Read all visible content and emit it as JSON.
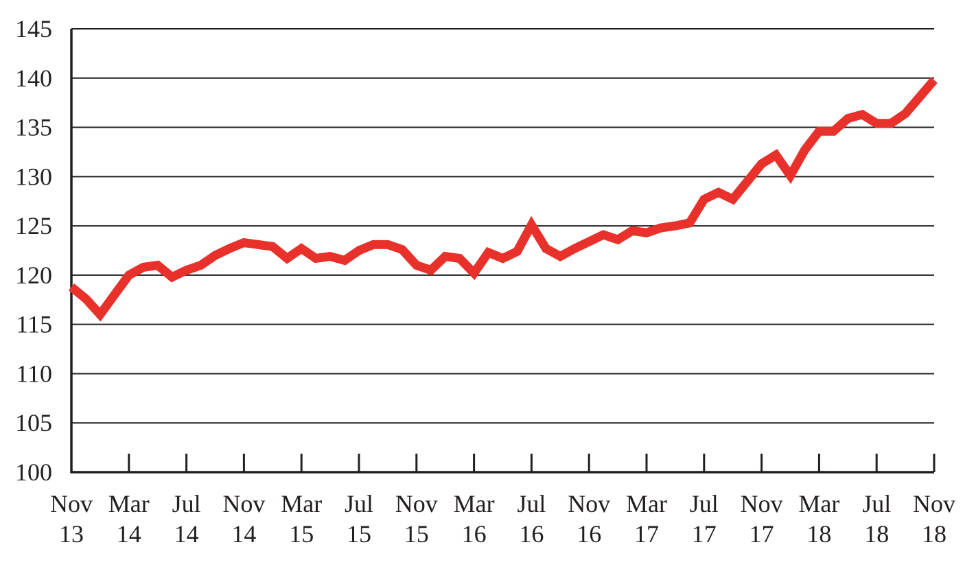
{
  "chart_data": {
    "type": "line",
    "title": "",
    "xlabel": "",
    "ylabel": "",
    "ylim": [
      100,
      145
    ],
    "yticks": [
      100,
      105,
      110,
      115,
      120,
      125,
      130,
      135,
      140,
      145
    ],
    "xticks": [
      {
        "month": "Nov",
        "year": "13"
      },
      {
        "month": "Mar",
        "year": "14"
      },
      {
        "month": "Jul",
        "year": "14"
      },
      {
        "month": "Nov",
        "year": "14"
      },
      {
        "month": "Mar",
        "year": "15"
      },
      {
        "month": "Jul",
        "year": "15"
      },
      {
        "month": "Nov",
        "year": "15"
      },
      {
        "month": "Mar",
        "year": "16"
      },
      {
        "month": "Jul",
        "year": "16"
      },
      {
        "month": "Nov",
        "year": "16"
      },
      {
        "month": "Mar",
        "year": "17"
      },
      {
        "month": "Jul",
        "year": "17"
      },
      {
        "month": "Nov",
        "year": "17"
      },
      {
        "month": "Mar",
        "year": "18"
      },
      {
        "month": "Jul",
        "year": "18"
      },
      {
        "month": "Nov",
        "year": "18"
      }
    ],
    "grid": true,
    "legend": "none",
    "series_color": "#e8312b",
    "axis_color": "#231f20",
    "x": [
      "Nov 13",
      "Dec 13",
      "Jan 14",
      "Feb 14",
      "Mar 14",
      "Apr 14",
      "May 14",
      "Jun 14",
      "Jul 14",
      "Aug 14",
      "Sep 14",
      "Oct 14",
      "Nov 14",
      "Dec 14",
      "Jan 15",
      "Feb 15",
      "Mar 15",
      "Apr 15",
      "May 15",
      "Jun 15",
      "Jul 15",
      "Aug 15",
      "Sep 15",
      "Oct 15",
      "Nov 15",
      "Dec 15",
      "Jan 16",
      "Feb 16",
      "Mar 16",
      "Apr 16",
      "May 16",
      "Jun 16",
      "Jul 16",
      "Aug 16",
      "Sep 16",
      "Oct 16",
      "Nov 16",
      "Dec 16",
      "Jan 17",
      "Feb 17",
      "Mar 17",
      "Apr 17",
      "May 17",
      "Jun 17",
      "Jul 17",
      "Aug 17",
      "Sep 17",
      "Oct 17",
      "Nov 17",
      "Dec 17",
      "Jan 18",
      "Feb 18",
      "Mar 18",
      "Apr 18",
      "May 18",
      "Jun 18",
      "Jul 18",
      "Aug 18",
      "Sep 18",
      "Oct 18",
      "Nov 18"
    ],
    "series": [
      {
        "values": [
          118.8,
          117.6,
          116.0,
          118.0,
          120.0,
          120.8,
          121.0,
          119.8,
          120.5,
          121.0,
          122.0,
          122.7,
          123.3,
          123.1,
          122.9,
          121.7,
          122.7,
          121.7,
          121.9,
          121.5,
          122.5,
          123.1,
          123.1,
          122.6,
          121.0,
          120.5,
          121.9,
          121.7,
          120.2,
          122.3,
          121.7,
          122.4,
          125.1,
          122.7,
          121.9,
          122.7,
          123.4,
          124.1,
          123.6,
          124.5,
          124.3,
          124.8,
          125.0,
          125.3,
          127.7,
          128.4,
          127.7,
          129.5,
          131.3,
          132.2,
          130.1,
          132.7,
          134.6,
          134.6,
          135.9,
          136.3,
          135.4,
          135.4,
          136.4,
          138.1,
          139.8
        ]
      }
    ]
  }
}
